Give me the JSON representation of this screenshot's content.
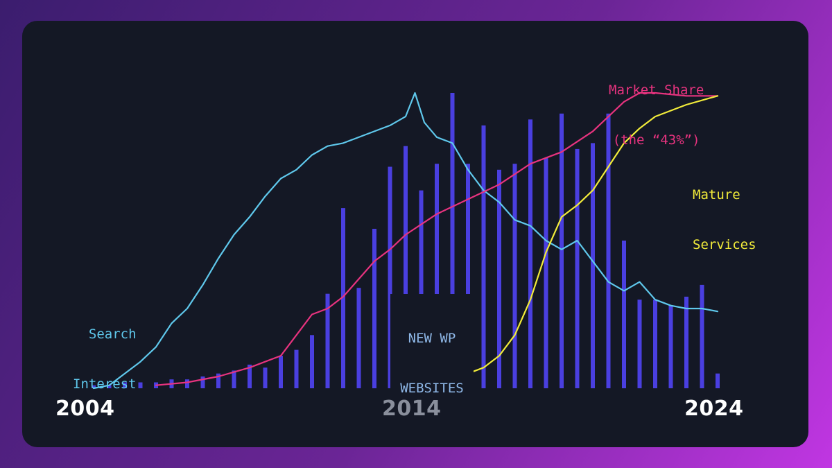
{
  "colors": {
    "bars": "#4a3fe0",
    "search": "#5fc8ec",
    "market": "#e8337f",
    "mature": "#f2ec3a",
    "wp_label": "#8fb8e8",
    "year_light": "#ffffff",
    "year_dim": "#8a8f9c"
  },
  "labels": {
    "search_interest": [
      "Search",
      "Interest"
    ],
    "new_wp": [
      "NEW WP",
      "WEBSITES"
    ],
    "market_share": [
      "Market Share",
      "(the “43%”)"
    ],
    "mature_services": [
      "Mature",
      "Services"
    ]
  },
  "years": {
    "start": "2004",
    "mid": "2014",
    "end": "2024"
  },
  "chart_data": {
    "type": "line",
    "x_range": [
      2004,
      2024
    ],
    "y_range": [
      0,
      100
    ],
    "x_tick_labels": [
      "2004",
      "2014",
      "2024"
    ],
    "grid": false,
    "series": [
      {
        "name": "NEW WP WEBSITES",
        "type": "bar",
        "x": [
          2004.0,
          2004.5,
          2005.0,
          2005.5,
          2006.0,
          2006.5,
          2007.0,
          2007.5,
          2008.0,
          2008.5,
          2009.0,
          2009.5,
          2010.0,
          2010.5,
          2011.0,
          2011.5,
          2012.0,
          2012.5,
          2013.0,
          2013.5,
          2014.0,
          2014.5,
          2015.0,
          2015.5,
          2016.0,
          2016.5,
          2017.0,
          2017.5,
          2018.0,
          2018.5,
          2019.0,
          2019.5,
          2020.0,
          2020.5,
          2021.0,
          2021.5,
          2022.0,
          2022.5,
          2023.0,
          2023.5,
          2024.0
        ],
        "values": [
          1,
          1,
          2,
          2,
          2,
          3,
          3,
          4,
          5,
          6,
          8,
          7,
          11,
          13,
          18,
          32,
          61,
          34,
          54,
          75,
          82,
          67,
          76,
          100,
          76,
          89,
          74,
          76,
          91,
          78,
          93,
          81,
          83,
          93,
          50,
          30,
          30,
          28,
          31,
          35,
          5
        ]
      },
      {
        "name": "Search Interest",
        "type": "line",
        "points": [
          [
            2004.0,
            0
          ],
          [
            2004.5,
            1
          ],
          [
            2005.0,
            5
          ],
          [
            2005.5,
            9
          ],
          [
            2006.0,
            14
          ],
          [
            2006.5,
            22
          ],
          [
            2007.0,
            27
          ],
          [
            2007.5,
            35
          ],
          [
            2008.0,
            44
          ],
          [
            2008.5,
            52
          ],
          [
            2009.0,
            58
          ],
          [
            2009.5,
            65
          ],
          [
            2010.0,
            71
          ],
          [
            2010.5,
            74
          ],
          [
            2011.0,
            79
          ],
          [
            2011.5,
            82
          ],
          [
            2012.0,
            83
          ],
          [
            2012.5,
            85
          ],
          [
            2013.0,
            87
          ],
          [
            2013.5,
            89
          ],
          [
            2014.0,
            92
          ],
          [
            2014.3,
            100
          ],
          [
            2014.6,
            90
          ],
          [
            2015.0,
            85
          ],
          [
            2015.5,
            83
          ],
          [
            2016.0,
            74
          ],
          [
            2016.5,
            67
          ],
          [
            2017.0,
            63
          ],
          [
            2017.5,
            57
          ],
          [
            2018.0,
            55
          ],
          [
            2018.5,
            50
          ],
          [
            2019.0,
            47
          ],
          [
            2019.5,
            50
          ],
          [
            2020.0,
            43
          ],
          [
            2020.5,
            36
          ],
          [
            2021.0,
            33
          ],
          [
            2021.5,
            36
          ],
          [
            2022.0,
            30
          ],
          [
            2022.5,
            28
          ],
          [
            2023.0,
            27
          ],
          [
            2023.5,
            27
          ],
          [
            2024.0,
            26
          ]
        ]
      },
      {
        "name": "Market Share",
        "type": "line",
        "points": [
          [
            2006.0,
            1
          ],
          [
            2007.0,
            2
          ],
          [
            2008.0,
            4
          ],
          [
            2009.0,
            7
          ],
          [
            2010.0,
            11
          ],
          [
            2010.5,
            18
          ],
          [
            2011.0,
            25
          ],
          [
            2011.5,
            27
          ],
          [
            2012.0,
            31
          ],
          [
            2012.5,
            37
          ],
          [
            2013.0,
            43
          ],
          [
            2013.5,
            47
          ],
          [
            2014.0,
            52
          ],
          [
            2015.0,
            59
          ],
          [
            2016.0,
            64
          ],
          [
            2017.0,
            69
          ],
          [
            2018.0,
            76
          ],
          [
            2019.0,
            80
          ],
          [
            2020.0,
            87
          ],
          [
            2021.0,
            97
          ],
          [
            2021.5,
            100
          ],
          [
            2022.0,
            100
          ],
          [
            2023.0,
            99
          ],
          [
            2024.0,
            99
          ]
        ]
      },
      {
        "name": "Mature Services",
        "type": "line",
        "points": [
          [
            2015.0,
            0
          ],
          [
            2015.5,
            3
          ],
          [
            2016.0,
            5
          ],
          [
            2016.5,
            7
          ],
          [
            2017.0,
            11
          ],
          [
            2017.5,
            18
          ],
          [
            2018.0,
            30
          ],
          [
            2018.5,
            46
          ],
          [
            2019.0,
            58
          ],
          [
            2019.5,
            62
          ],
          [
            2020.0,
            67
          ],
          [
            2020.5,
            75
          ],
          [
            2021.0,
            83
          ],
          [
            2021.5,
            88
          ],
          [
            2022.0,
            92
          ],
          [
            2023.0,
            96
          ],
          [
            2024.0,
            99
          ]
        ]
      }
    ]
  }
}
